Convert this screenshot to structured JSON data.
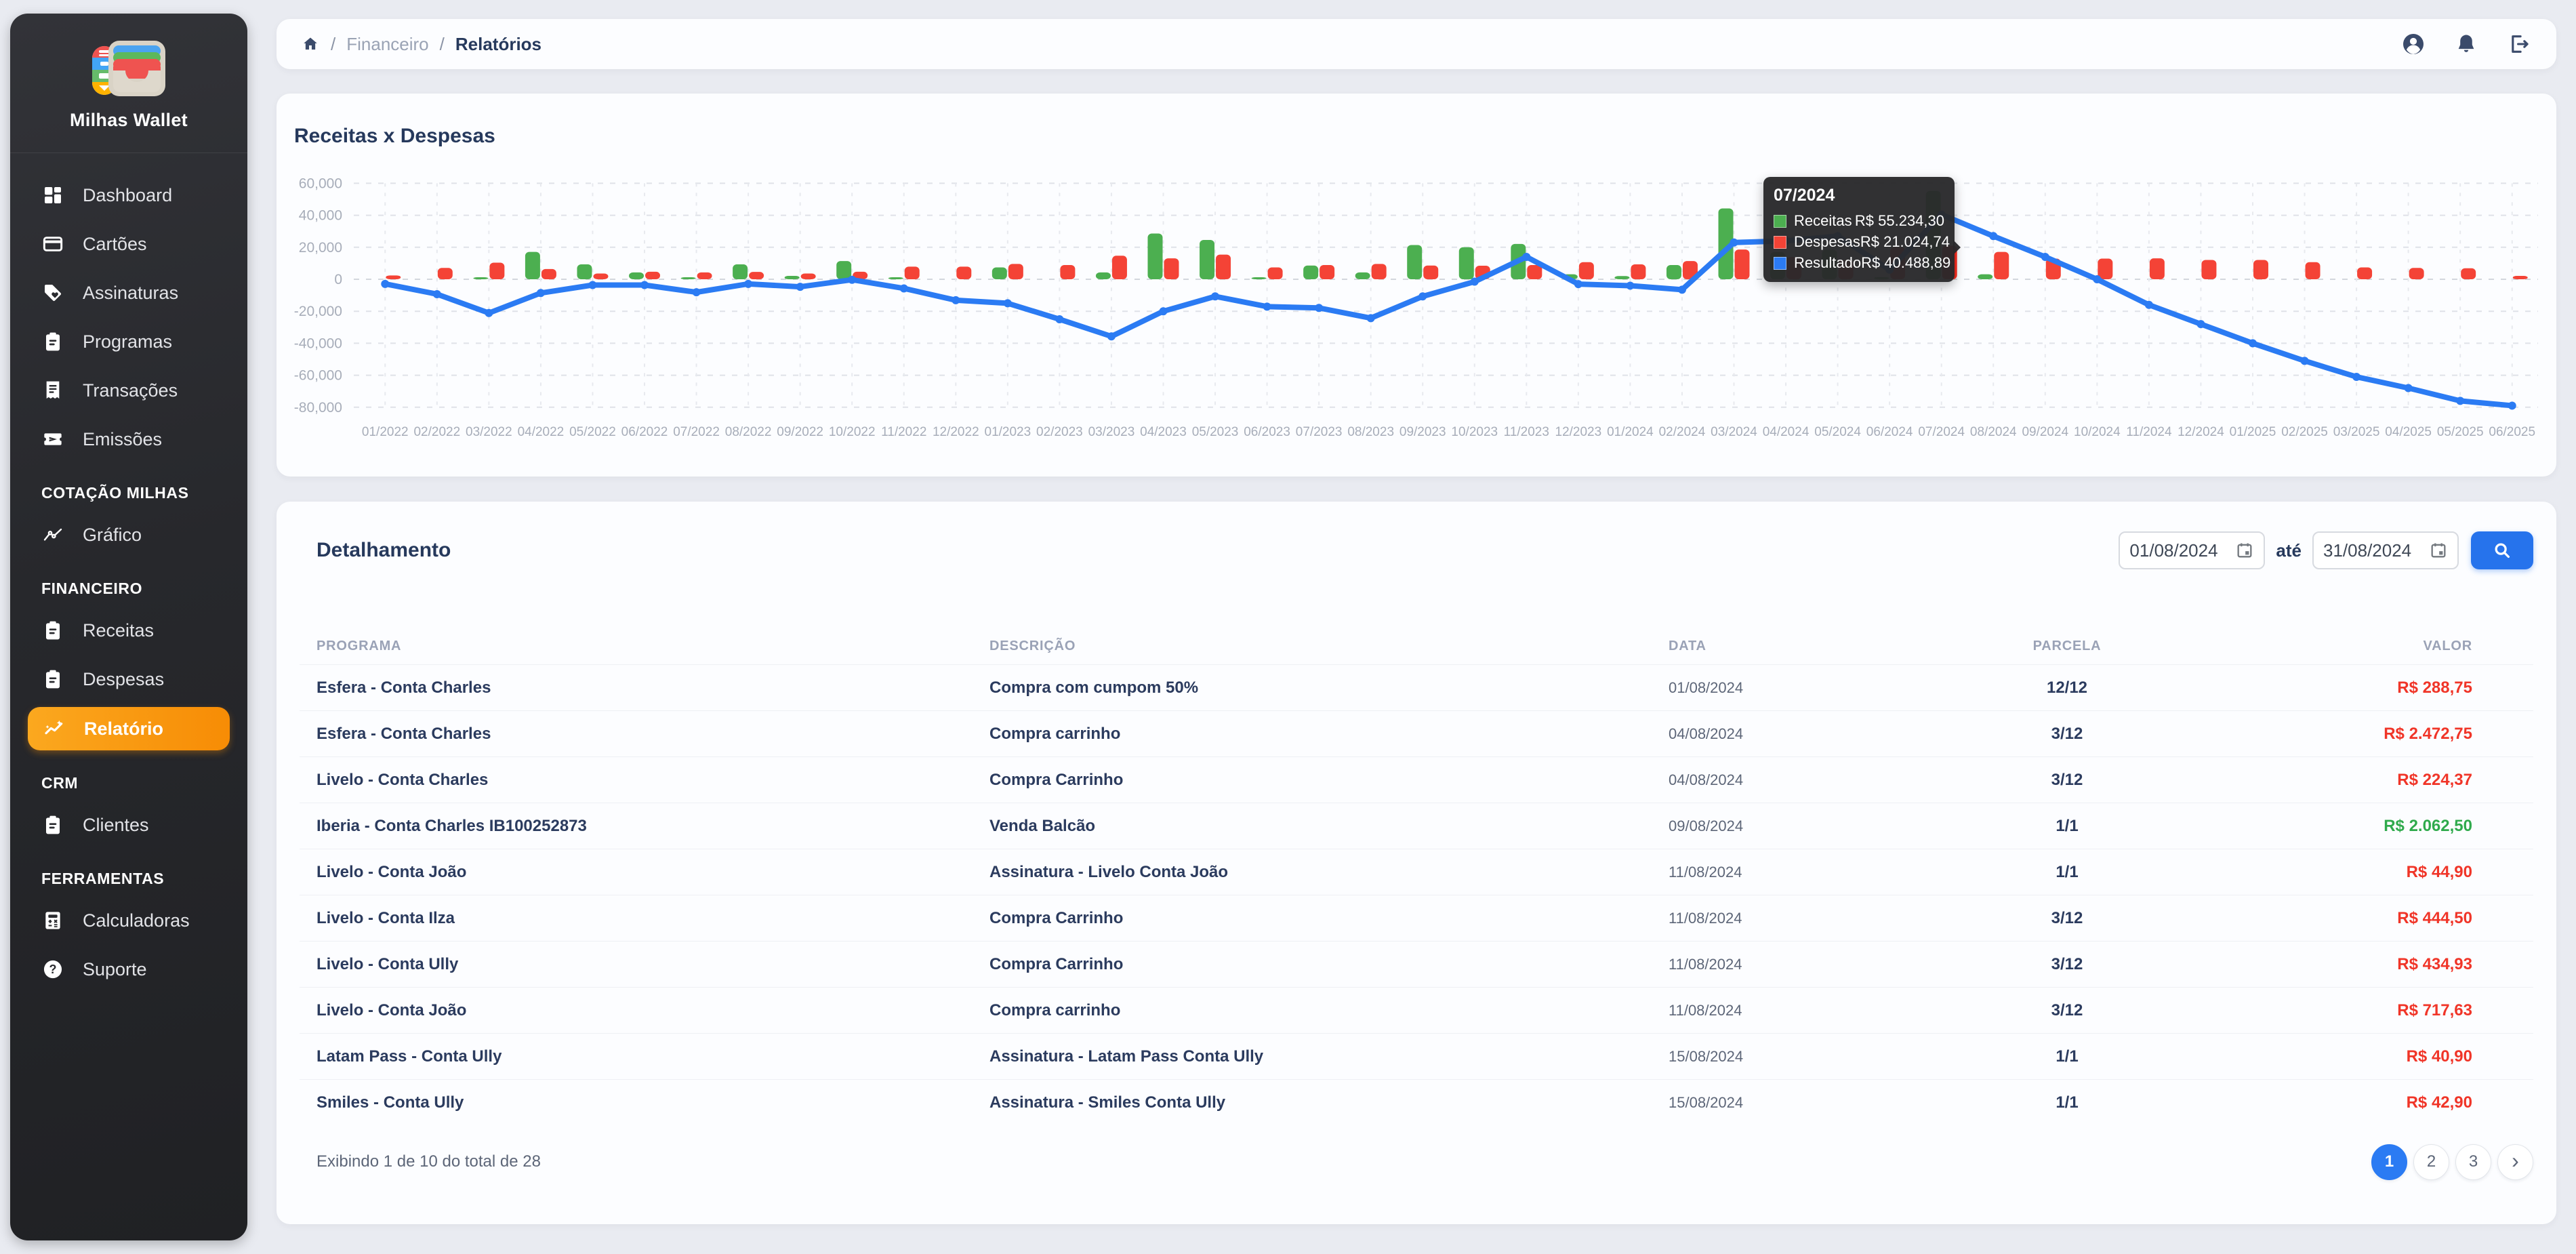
{
  "app": {
    "name": "Milhas Wallet"
  },
  "breadcrumb": {
    "parent": "Financeiro",
    "current": "Relatórios",
    "separator": "/"
  },
  "topbar_icons": [
    "user-icon",
    "bell-icon",
    "logout-icon"
  ],
  "sidebar": {
    "sections": [
      {
        "header": null,
        "items": [
          {
            "label": "Dashboard",
            "icon": "dashboard-icon"
          },
          {
            "label": "Cartões",
            "icon": "credit-card-icon"
          },
          {
            "label": "Assinaturas",
            "icon": "tag-heart-icon"
          },
          {
            "label": "Programas",
            "icon": "clipboard-icon"
          },
          {
            "label": "Transações",
            "icon": "receipt-icon"
          },
          {
            "label": "Emissões",
            "icon": "ticket-plane-icon"
          }
        ]
      },
      {
        "header": "COTAÇÃO MILHAS",
        "items": [
          {
            "label": "Gráfico",
            "icon": "line-chart-icon"
          }
        ]
      },
      {
        "header": "FINANCEIRO",
        "items": [
          {
            "label": "Receitas",
            "icon": "clipboard-icon"
          },
          {
            "label": "Despesas",
            "icon": "clipboard-icon"
          },
          {
            "label": "Relatório",
            "icon": "sparkline-icon",
            "active": true
          }
        ]
      },
      {
        "header": "CRM",
        "items": [
          {
            "label": "Clientes",
            "icon": "clipboard-icon"
          }
        ]
      },
      {
        "header": "FERRAMENTAS",
        "items": [
          {
            "label": "Calculadoras",
            "icon": "calculator-icon"
          },
          {
            "label": "Suporte",
            "icon": "help-icon"
          }
        ]
      }
    ]
  },
  "chart": {
    "title": "Receitas x Despesas",
    "tooltip": {
      "title": "07/2024",
      "rows": [
        {
          "label": "Receitas",
          "value": "R$ 55.234,30",
          "color": "#4caf50"
        },
        {
          "label": "Despesas",
          "value": "R$ 21.024,74",
          "color": "#f44336"
        },
        {
          "label": "Resultado",
          "value": "R$ 40.488,89",
          "color": "#2b7bf3"
        }
      ]
    }
  },
  "chart_data": {
    "type": "bar+line",
    "title": "Receitas x Despesas",
    "xlabel": "",
    "ylabel": "",
    "ylim": [
      -80000,
      60000
    ],
    "ytick_step": 20000,
    "grid": true,
    "legend_position": "tooltip-only",
    "highlight_index": 30,
    "categories": [
      "01/2022",
      "02/2022",
      "03/2022",
      "04/2022",
      "05/2022",
      "06/2022",
      "07/2022",
      "08/2022",
      "09/2022",
      "10/2022",
      "11/2022",
      "12/2022",
      "01/2023",
      "02/2023",
      "03/2023",
      "04/2023",
      "05/2023",
      "06/2023",
      "07/2023",
      "08/2023",
      "09/2023",
      "10/2023",
      "11/2023",
      "12/2023",
      "01/2024",
      "02/2024",
      "03/2024",
      "04/2024",
      "05/2024",
      "06/2024",
      "07/2024",
      "08/2024",
      "09/2024",
      "10/2024",
      "11/2024",
      "12/2024",
      "01/2025",
      "02/2025",
      "03/2025",
      "04/2025",
      "05/2025",
      "06/2025"
    ],
    "series": [
      {
        "name": "Receitas",
        "type": "bar",
        "color": "#4caf50",
        "values": [
          0,
          0,
          500,
          17100,
          9300,
          4300,
          400,
          9300,
          2100,
          11400,
          700,
          0,
          7400,
          0,
          4300,
          28600,
          24600,
          700,
          8600,
          4300,
          21400,
          20000,
          22100,
          3100,
          2000,
          8900,
          44300,
          17000,
          18600,
          1400,
          55234.3,
          3100,
          0,
          0,
          0,
          0,
          0,
          0,
          0,
          0,
          0,
          0
        ]
      },
      {
        "name": "Despesas",
        "type": "bar",
        "color": "#f44336",
        "highlight_color": "#ff2c1f",
        "values": [
          2400,
          7100,
          10400,
          6400,
          3600,
          4700,
          4300,
          4600,
          3600,
          4700,
          7900,
          7900,
          9600,
          8900,
          14700,
          13100,
          15400,
          7400,
          8900,
          9600,
          8600,
          8500,
          8900,
          10700,
          9300,
          11400,
          18600,
          14000,
          12100,
          20000,
          21024.74,
          17100,
          12900,
          12900,
          13100,
          12100,
          12100,
          10700,
          7400,
          7100,
          6900,
          2100
        ]
      },
      {
        "name": "Resultado",
        "type": "line",
        "color": "#2b7bf3",
        "values": [
          -2900,
          -9300,
          -21100,
          -8600,
          -3600,
          -3600,
          -8100,
          -2900,
          -4700,
          -300,
          -5700,
          -13100,
          -15000,
          -25000,
          -35700,
          -20000,
          -10700,
          -17100,
          -17900,
          -24300,
          -10700,
          -1500,
          14000,
          -3000,
          -4000,
          -6500,
          23000,
          24000,
          27000,
          6000,
          40488.89,
          27000,
          14000,
          0,
          -16000,
          -28000,
          -40000,
          -51000,
          -61000,
          -68000,
          -76000,
          -79000
        ]
      }
    ],
    "annotations": [
      {
        "x": "07/2024",
        "text": "Receitas R$ 55.234,30 / Despesas R$ 21.024,74 / Resultado R$ 40.488,89"
      }
    ]
  },
  "detail": {
    "title": "Detalhamento",
    "date_from": "01/08/2024",
    "separator": "até",
    "date_to": "31/08/2024",
    "columns": [
      "PROGRAMA",
      "DESCRIÇÃO",
      "DATA",
      "PARCELA",
      "VALOR"
    ],
    "rows": [
      {
        "programa": "Esfera - Conta Charles",
        "descricao": "Compra com cumpom 50%",
        "data": "01/08/2024",
        "parcela": "12/12",
        "valor": "R$ 288,75",
        "valor_color": "red"
      },
      {
        "programa": "Esfera - Conta Charles",
        "descricao": "Compra carrinho",
        "data": "04/08/2024",
        "parcela": "3/12",
        "valor": "R$ 2.472,75",
        "valor_color": "red"
      },
      {
        "programa": "Livelo - Conta Charles",
        "descricao": "Compra Carrinho",
        "data": "04/08/2024",
        "parcela": "3/12",
        "valor": "R$ 224,37",
        "valor_color": "red"
      },
      {
        "programa": "Iberia - Conta Charles IB100252873",
        "descricao": "Venda Balcão",
        "data": "09/08/2024",
        "parcela": "1/1",
        "valor": "R$ 2.062,50",
        "valor_color": "green"
      },
      {
        "programa": "Livelo - Conta João",
        "descricao": "Assinatura - Livelo Conta João",
        "data": "11/08/2024",
        "parcela": "1/1",
        "valor": "R$ 44,90",
        "valor_color": "red"
      },
      {
        "programa": "Livelo - Conta Ilza",
        "descricao": "Compra Carrinho",
        "data": "11/08/2024",
        "parcela": "3/12",
        "valor": "R$ 444,50",
        "valor_color": "red"
      },
      {
        "programa": "Livelo - Conta Ully",
        "descricao": "Compra Carrinho",
        "data": "11/08/2024",
        "parcela": "3/12",
        "valor": "R$ 434,93",
        "valor_color": "red"
      },
      {
        "programa": "Livelo - Conta João",
        "descricao": "Compra carrinho",
        "data": "11/08/2024",
        "parcela": "3/12",
        "valor": "R$ 717,63",
        "valor_color": "red"
      },
      {
        "programa": "Latam Pass - Conta Ully",
        "descricao": "Assinatura - Latam Pass Conta Ully",
        "data": "15/08/2024",
        "parcela": "1/1",
        "valor": "R$ 40,90",
        "valor_color": "red"
      },
      {
        "programa": "Smiles - Conta Ully",
        "descricao": "Assinatura - Smiles Conta Ully",
        "data": "15/08/2024",
        "parcela": "1/1",
        "valor": "R$ 42,90",
        "valor_color": "red"
      }
    ],
    "footer": "Exibindo 1 de 10 do total de 28",
    "pagination": {
      "pages": [
        "1",
        "2",
        "3"
      ],
      "active": "1",
      "next_icon": "chevron-right-icon"
    }
  },
  "colors": {
    "accent_orange": "#f78c05",
    "accent_blue": "#2673ec",
    "green": "#4caf50",
    "red": "#f44336",
    "line_blue": "#2b7bf3",
    "navy_text": "#26395c",
    "sidebar_bg": "#27282c"
  }
}
